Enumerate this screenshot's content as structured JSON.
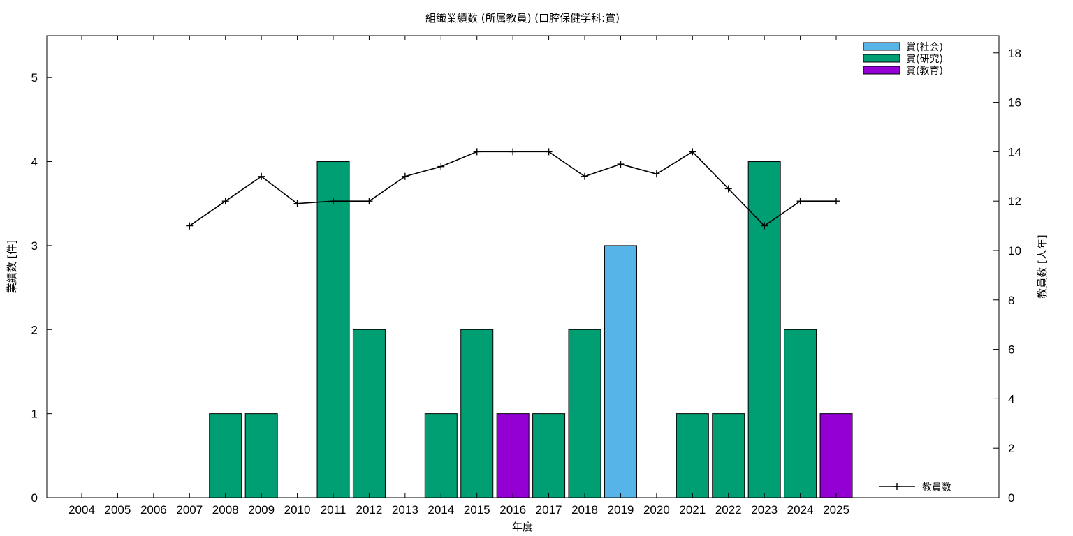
{
  "chart_data": {
    "type": "bar",
    "title": "組織業績数 (所属教員) (口腔保健学科:賞)",
    "xlabel": "年度",
    "ylabel": "業績数 [件]",
    "y2label": "教員数 [人年]",
    "categories": [
      "2004",
      "2005",
      "2006",
      "2007",
      "2008",
      "2009",
      "2010",
      "2011",
      "2012",
      "2013",
      "2014",
      "2015",
      "2016",
      "2017",
      "2018",
      "2019",
      "2020",
      "2021",
      "2022",
      "2023",
      "2024",
      "2025"
    ],
    "ylim": [
      0,
      5.5
    ],
    "y2lim": [
      0,
      18.7
    ],
    "yticks": [
      0,
      1,
      2,
      3,
      4,
      5
    ],
    "y2ticks": [
      0,
      2,
      4,
      6,
      8,
      10,
      12,
      14,
      16,
      18
    ],
    "grid": false,
    "legend_position": "top-right",
    "series": [
      {
        "name": "賞(社会)",
        "color": "#56b4e9",
        "values": [
          0,
          0,
          0,
          0,
          0,
          0,
          0,
          0,
          0,
          0,
          0,
          0,
          0,
          0,
          0,
          3,
          0,
          0,
          0,
          0,
          0,
          0
        ]
      },
      {
        "name": "賞(研究)",
        "color": "#009e73",
        "values": [
          0,
          0,
          0,
          0,
          1,
          1,
          0,
          4,
          2,
          0,
          1,
          2,
          0,
          1,
          2,
          0,
          0,
          1,
          1,
          4,
          2,
          0
        ]
      },
      {
        "name": "賞(教育)",
        "color": "#9400d3",
        "values": [
          0,
          0,
          0,
          0,
          0,
          0,
          0,
          0,
          0,
          0,
          0,
          0,
          1,
          0,
          0,
          0,
          0,
          0,
          0,
          0,
          0,
          1
        ]
      }
    ],
    "line_series": {
      "name": "教員数",
      "color": "#000000",
      "axis": "y2",
      "x": [
        "2007",
        "2008",
        "2009",
        "2010",
        "2011",
        "2012",
        "2013",
        "2014",
        "2015",
        "2016",
        "2017",
        "2018",
        "2019",
        "2020",
        "2021",
        "2022",
        "2023",
        "2024",
        "2025"
      ],
      "values": [
        11,
        12,
        13,
        11.9,
        12,
        12,
        13,
        13.4,
        14,
        14,
        14,
        13,
        13.5,
        13.1,
        14,
        12.5,
        11,
        12,
        12
      ]
    }
  }
}
